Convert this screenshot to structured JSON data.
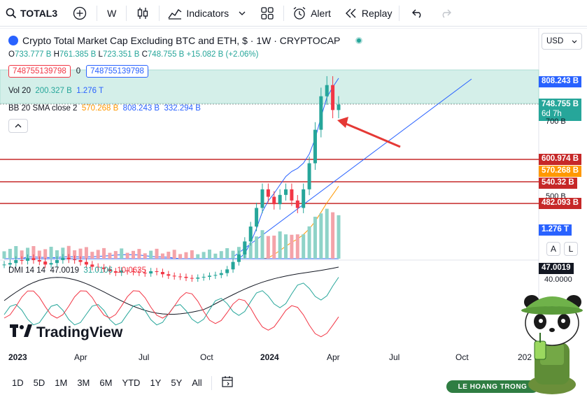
{
  "toolbar": {
    "symbol": "TOTAL3",
    "interval": "W",
    "indicators_label": "Indicators",
    "alert_label": "Alert",
    "replay_label": "Replay"
  },
  "legend": {
    "title": "Crypto Total Market Cap Excluding BTC and ETH, $ · 1W · CRYPTOCAP",
    "ohlc": {
      "o_label": "O",
      "o": "733.777 B",
      "h_label": "H",
      "h": "761.385 B",
      "l_label": "L",
      "l": "723.351 B",
      "c_label": "C",
      "c": "748.755 B",
      "change": "+15.082 B (+2.06%)"
    },
    "box_left": "748755139798",
    "box_zero": "0",
    "box_right": "748755139798",
    "vol": {
      "name": "Vol 20",
      "v1": "200.327 B",
      "v2": "1.276 T"
    },
    "bb": {
      "name": "BB 20 SMA close 2",
      "basis": "570.268 B",
      "upper": "808.243 B",
      "lower": "332.294 B"
    },
    "dmi": {
      "name": "DMI 14 14",
      "adx": "47.0019",
      "plus": "31.0106",
      "minus": "10.0635"
    }
  },
  "currency": "USD",
  "price_scale": {
    "bb_upper_tag": "808.243 B",
    "last_price_tag": "748.755 B",
    "countdown": "6d 7h",
    "tick_700": "700 B",
    "level_1": "600.974 B",
    "bb_basis_tag": "570.268 B",
    "level_2": "540.32 B",
    "tick_500": "500 B",
    "level_3": "482.093 B",
    "vol_tag": "1.276 T",
    "auto_btn": "A",
    "log_btn": "L",
    "adx_tag": "47.0019",
    "dmi_level": "40.0000"
  },
  "time_axis": [
    "2023",
    "Apr",
    "Jul",
    "Oct",
    "2024",
    "Apr",
    "Jul",
    "Oct",
    "202"
  ],
  "ranges": [
    "1D",
    "5D",
    "1M",
    "3M",
    "6M",
    "YTD",
    "1Y",
    "5Y",
    "All"
  ],
  "logo_text": "TradingView",
  "watermark": "LE HOANG TRONG",
  "colors": {
    "up": "#26a69a",
    "down": "#f23645",
    "level_line": "#c62828",
    "bb_upper": "#2962ff",
    "bb_basis": "#ff9800",
    "zone_fill": "#d4efe9"
  },
  "chart_data": {
    "type": "candlestick",
    "interval": "1W",
    "xlabels": [
      "2023",
      "Apr",
      "Jul",
      "Oct",
      "2024",
      "Apr",
      "Jul",
      "Oct"
    ],
    "horizontal_levels_B": [
      600.974,
      540.32,
      482.093
    ],
    "last_close_B": 748.755,
    "bb_upper_B": 808.243,
    "bb_basis_B": 570.268,
    "bb_lower_B": 332.294,
    "series_close_B": [
      318,
      322,
      330,
      328,
      335,
      330,
      326,
      318,
      322,
      330,
      336,
      332,
      330,
      325,
      318,
      312,
      310,
      306,
      300,
      296,
      302,
      300,
      298,
      296,
      294,
      300,
      298,
      292,
      288,
      286,
      285,
      282,
      280,
      283,
      285,
      288,
      290,
      295,
      305,
      325,
      345,
      380,
      420,
      470,
      520,
      500,
      480,
      505,
      520,
      490,
      470,
      520,
      590,
      680,
      770,
      800,
      733,
      748
    ]
  }
}
